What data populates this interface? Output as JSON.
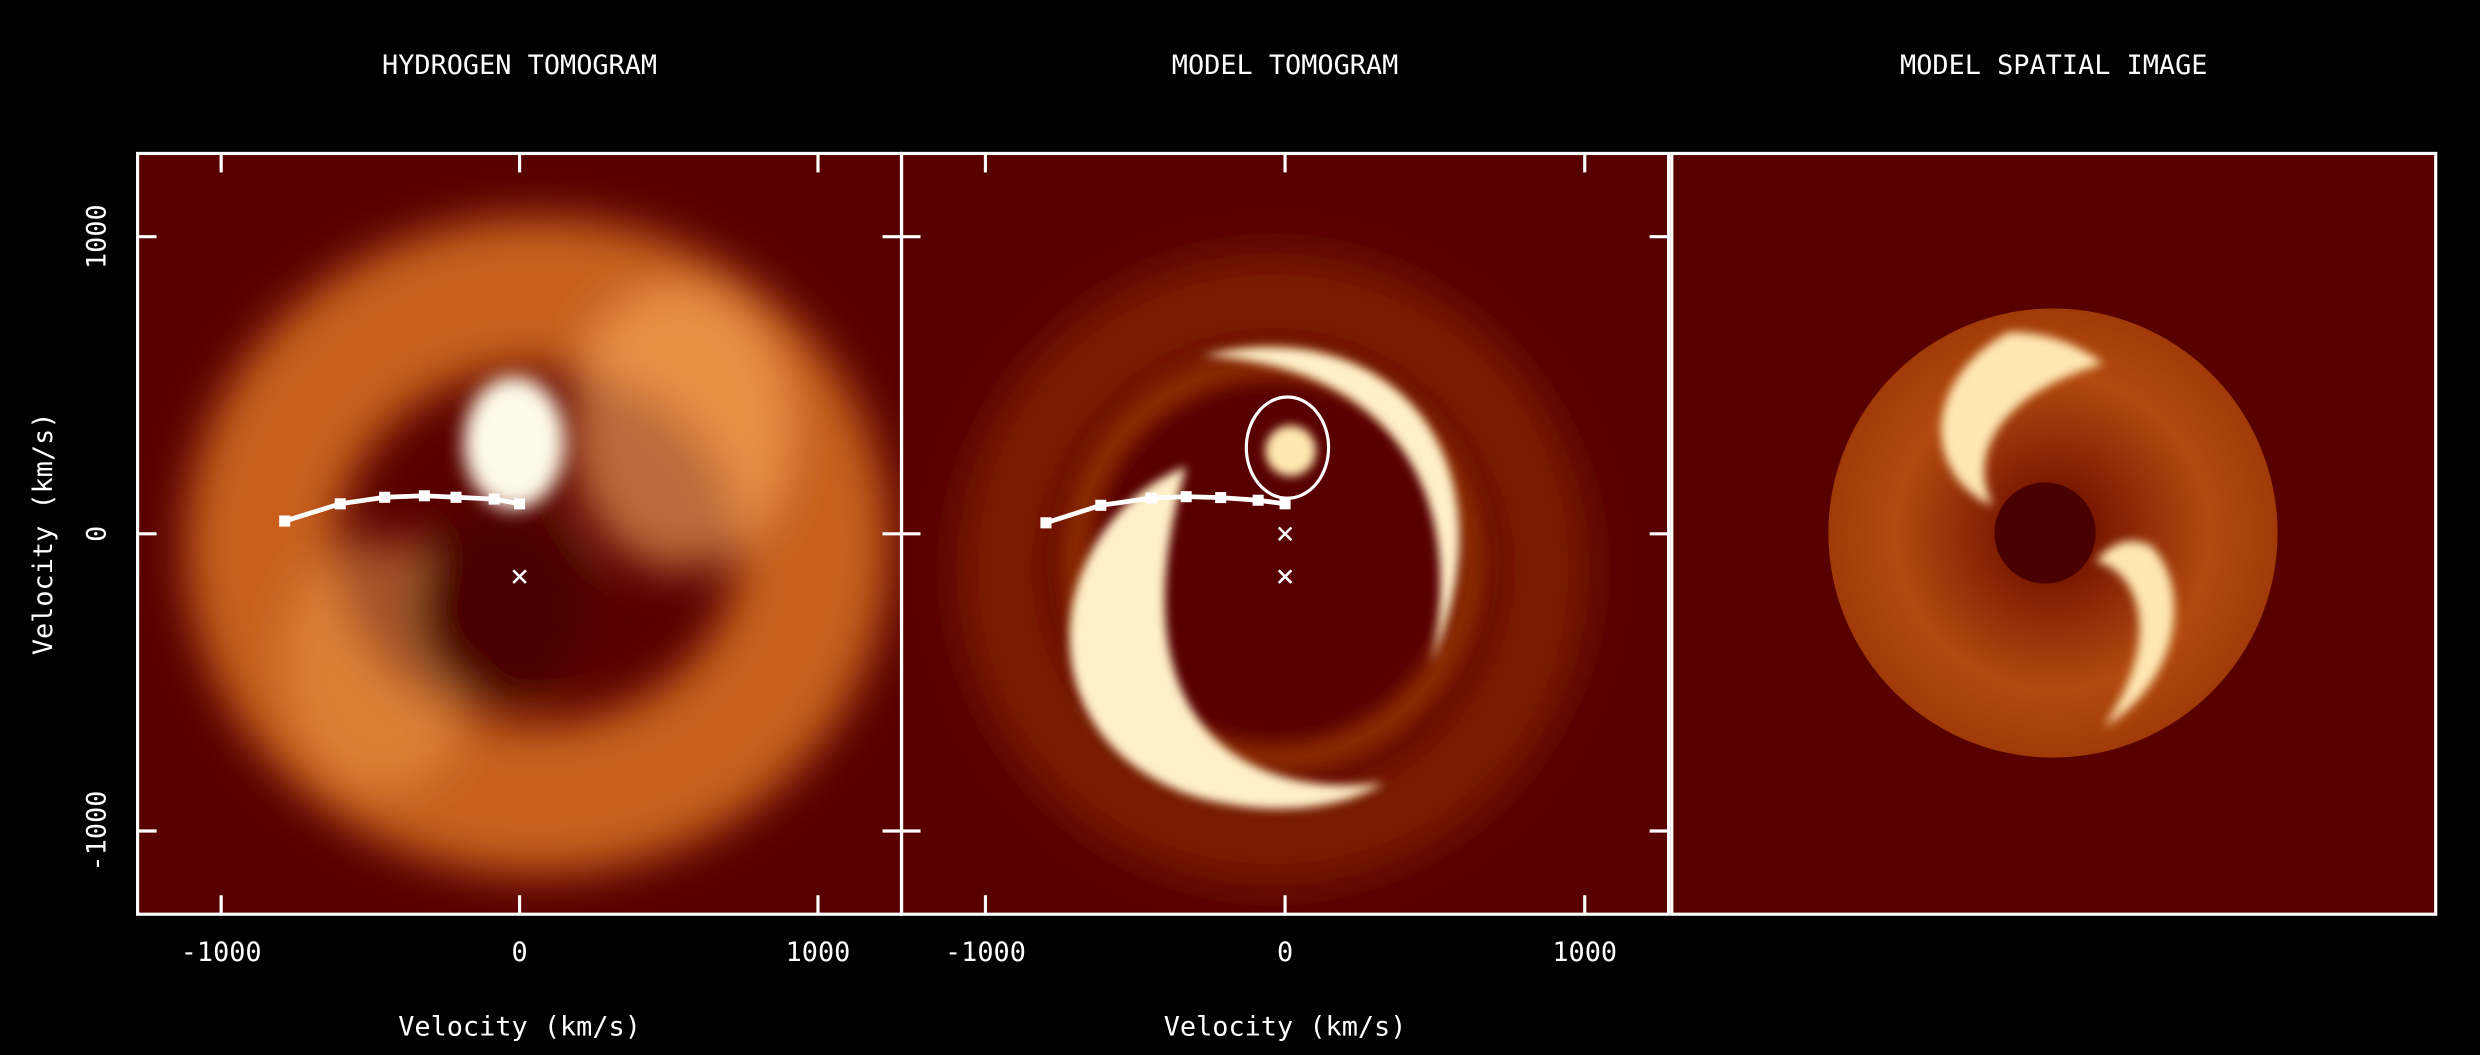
{
  "chart_data": [
    {
      "type": "image",
      "title": "HYDROGEN TOMOGRAM",
      "xlabel": "Velocity (km/s)",
      "ylabel": "Velocity (km/s)",
      "xlim": [
        -1280,
        1280
      ],
      "ylim": [
        -1280,
        1280
      ],
      "xticks": [
        -1000,
        0,
        1000
      ],
      "yticks": [
        -1000,
        0,
        1000
      ],
      "series": [
        {
          "marker": "square",
          "color": "#ffffff",
          "x": [
            -787,
            -601,
            -452,
            -319,
            -213,
            -85,
            0
          ],
          "values": [
            43,
            101,
            123,
            128,
            123,
            117,
            101
          ]
        },
        {
          "marker": "cross",
          "color": "#ffffff",
          "x": [
            0
          ],
          "values": [
            -144
          ]
        }
      ]
    },
    {
      "type": "image",
      "title": "MODEL TOMOGRAM",
      "xlabel": "Velocity (km/s)",
      "xlim": [
        -1280,
        1280
      ],
      "ylim": [
        -1280,
        1280
      ],
      "xticks": [
        -1000,
        0,
        1000
      ],
      "yticks": [
        -1000,
        0,
        1000
      ],
      "series": [
        {
          "marker": "square",
          "color": "#ffffff",
          "x": [
            -798,
            -615,
            -447,
            -330,
            -215,
            -90,
            0
          ],
          "values": [
            37,
            96,
            120,
            125,
            122,
            113,
            101
          ]
        },
        {
          "marker": "cross",
          "color": "#ffffff",
          "x": [
            0,
            0
          ],
          "values": [
            0,
            -144
          ]
        }
      ]
    },
    {
      "type": "image",
      "title": "MODEL SPATIAL IMAGE"
    }
  ]
}
